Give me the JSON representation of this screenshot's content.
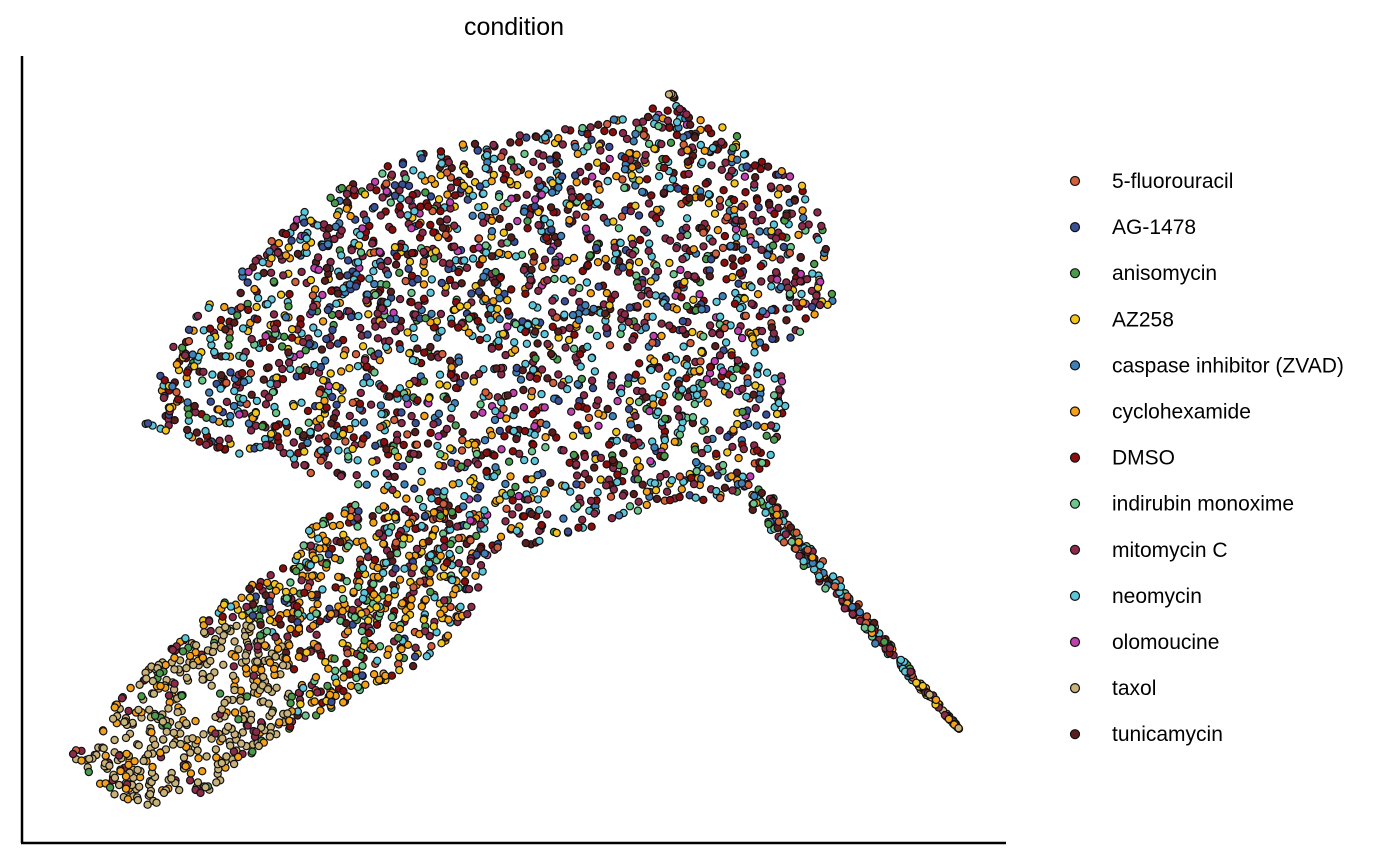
{
  "chart_data": {
    "type": "scatter",
    "title": "condition",
    "xlabel": "",
    "ylabel": "",
    "grid": false,
    "legend_position": "right",
    "x_ticks": [],
    "y_ticks": [],
    "series": [
      {
        "name": "5-fluorouracil",
        "color": "#D45F3B"
      },
      {
        "name": "AG-1478",
        "color": "#3B4F97"
      },
      {
        "name": "anisomycin",
        "color": "#4A9B4C"
      },
      {
        "name": "AZ258",
        "color": "#F2C51D"
      },
      {
        "name": "caspase inhibitor (ZVAD)",
        "color": "#3F80B8"
      },
      {
        "name": "cyclohexamide",
        "color": "#F5A118"
      },
      {
        "name": "DMSO",
        "color": "#8B0E0E"
      },
      {
        "name": "indirubin monoxime",
        "color": "#6CC58A"
      },
      {
        "name": "mitomycin C",
        "color": "#8C2A4A"
      },
      {
        "name": "neomycin",
        "color": "#5BC6DA"
      },
      {
        "name": "olomoucine",
        "color": "#C040B0"
      },
      {
        "name": "taxol",
        "color": "#C9B27A"
      },
      {
        "name": "tunicamycin",
        "color": "#5A1E1E"
      }
    ]
  }
}
